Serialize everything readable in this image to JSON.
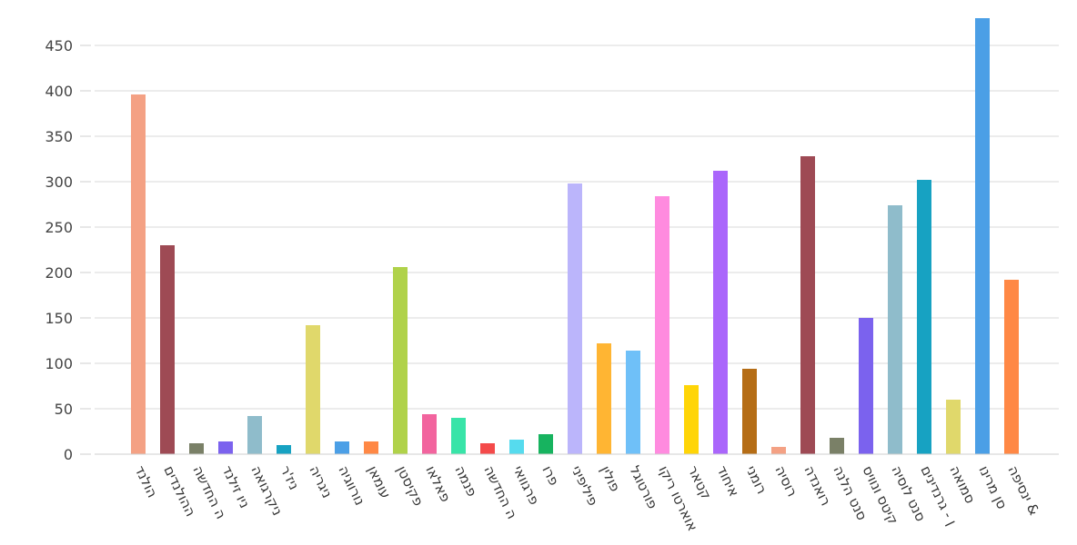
{
  "chart_data": {
    "type": "bar",
    "title": "",
    "xlabel": "",
    "ylabel": "",
    "ylim": [
      0,
      480
    ],
    "yticks": [
      0,
      50,
      100,
      150,
      200,
      250,
      300,
      350,
      400,
      450
    ],
    "grid": true,
    "legend": "none",
    "categories": [
      "הולנד",
      "ההולנדים",
      "ה החדשה",
      "ניו זילנד",
      "ניקרגואה",
      "ניז'ר",
      "ניגריה",
      "נורווגיה",
      "עומאן",
      "פקיסטן",
      "פאלאו",
      "פנמה",
      "ה החדשה",
      "פרגוואי",
      "פרו",
      "פיליפיני",
      "פולין",
      "פורטוגל",
      "אוארטו ריקו",
      "קטאר",
      "איחוד",
      "רומני",
      "רוסיה",
      "רואנדה",
      "סנט הלנה",
      "קיטס ונוויס",
      "סנט לוסיה",
      "ן - גרנדינים",
      "סמואה",
      "סן מרינו",
      "ינסיפה &"
    ],
    "values": [
      396,
      230,
      12,
      14,
      42,
      10,
      142,
      14,
      14,
      206,
      44,
      40,
      12,
      16,
      22,
      298,
      122,
      114,
      284,
      76,
      312,
      94,
      8,
      328,
      18,
      150,
      274,
      302,
      60,
      480,
      192
    ],
    "colors": [
      "#f4a184",
      "#9e4a54",
      "#7a8067",
      "#7b62ee",
      "#8fbccb",
      "#17a2c2",
      "#e0d86b",
      "#4b9fe6",
      "#ff8845",
      "#b0d24a",
      "#f2649e",
      "#38e4a8",
      "#f44a4a",
      "#56dbee",
      "#17b35f",
      "#bbb5fb",
      "#ffb533",
      "#6fc0f8",
      "#ff8bdf",
      "#ffd507",
      "#aa66fb",
      "#b56d16",
      "#f4a184",
      "#9e4a54",
      "#7a8067",
      "#7b62ee",
      "#8fbccb",
      "#17a2c2",
      "#e0d86b",
      "#4b9fe6",
      "#ff8845"
    ]
  }
}
